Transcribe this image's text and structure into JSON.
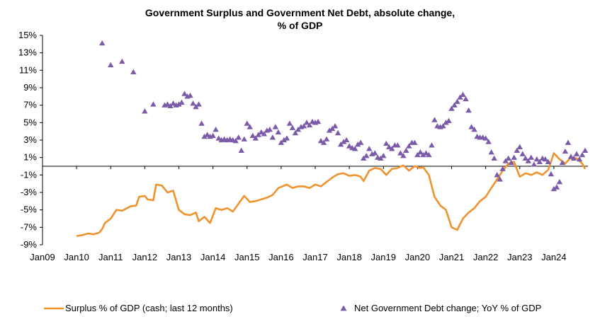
{
  "chart_data": {
    "type": "line",
    "title_line1": "Government Surplus and Government Net Debt, absolute change,",
    "title_line2": "% of GDP",
    "xlabel": "",
    "ylabel": "",
    "ylim": [
      -9,
      15
    ],
    "y_ticks": [
      "15%",
      "13%",
      "11%",
      "9%",
      "7%",
      "5%",
      "3%",
      "1%",
      "-1%",
      "-3%",
      "-5%",
      "-7%",
      "-9%"
    ],
    "x_ticks": [
      "Jan09",
      "Jan10",
      "Jan11",
      "Jan12",
      "Jan13",
      "Jan14",
      "Jan15",
      "Jan16",
      "Jan17",
      "Jan18",
      "Jan19",
      "Jan20",
      "Jan21",
      "Jan22",
      "Jan23",
      "Jan24"
    ],
    "x_range": [
      "2009-01",
      "2025-01"
    ],
    "grid": false,
    "legend_position": "bottom",
    "series": [
      {
        "name": "Surplus  % of GDP (cash; last 12 months)",
        "type": "line",
        "color": "#F0922E",
        "points": [
          [
            "2010-01",
            -8.0
          ],
          [
            "2010-03",
            -7.9
          ],
          [
            "2010-05",
            -7.7
          ],
          [
            "2010-07",
            -7.8
          ],
          [
            "2010-09",
            -7.6
          ],
          [
            "2010-10",
            -7.2
          ],
          [
            "2010-11",
            -6.5
          ],
          [
            "2011-01",
            -6.0
          ],
          [
            "2011-03",
            -5.0
          ],
          [
            "2011-05",
            -5.1
          ],
          [
            "2011-08",
            -4.6
          ],
          [
            "2011-10",
            -4.5
          ],
          [
            "2011-11",
            -3.5
          ],
          [
            "2012-01",
            -3.4
          ],
          [
            "2012-02",
            -3.8
          ],
          [
            "2012-04",
            -3.9
          ],
          [
            "2012-05",
            -2.1
          ],
          [
            "2012-07",
            -2.2
          ],
          [
            "2012-09",
            -3.0
          ],
          [
            "2012-11",
            -2.8
          ],
          [
            "2013-01",
            -5.0
          ],
          [
            "2013-03",
            -5.5
          ],
          [
            "2013-05",
            -5.6
          ],
          [
            "2013-07",
            -5.3
          ],
          [
            "2013-08",
            -6.3
          ],
          [
            "2013-10",
            -5.8
          ],
          [
            "2013-12",
            -6.5
          ],
          [
            "2014-02",
            -4.8
          ],
          [
            "2014-04",
            -5.0
          ],
          [
            "2014-06",
            -4.8
          ],
          [
            "2014-08",
            -5.2
          ],
          [
            "2014-10",
            -4.3
          ],
          [
            "2014-12",
            -3.4
          ],
          [
            "2015-02",
            -4.1
          ],
          [
            "2015-04",
            -4.0
          ],
          [
            "2015-06",
            -3.8
          ],
          [
            "2015-08",
            -3.6
          ],
          [
            "2015-10",
            -3.3
          ],
          [
            "2015-12",
            -2.5
          ],
          [
            "2016-03",
            -2.1
          ],
          [
            "2016-05",
            -2.5
          ],
          [
            "2016-07",
            -2.3
          ],
          [
            "2016-09",
            -2.3
          ],
          [
            "2016-11",
            -2.5
          ],
          [
            "2017-01",
            -2.1
          ],
          [
            "2017-03",
            -2.3
          ],
          [
            "2017-05",
            -1.8
          ],
          [
            "2017-07",
            -1.3
          ],
          [
            "2017-09",
            -0.9
          ],
          [
            "2017-11",
            -0.8
          ],
          [
            "2018-01",
            -1.1
          ],
          [
            "2018-03",
            -1.0
          ],
          [
            "2018-05",
            -1.2
          ],
          [
            "2018-06",
            -1.7
          ],
          [
            "2018-08",
            -0.5
          ],
          [
            "2018-10",
            -0.2
          ],
          [
            "2018-12",
            -0.3
          ],
          [
            "2019-02",
            -1.0
          ],
          [
            "2019-04",
            -0.3
          ],
          [
            "2019-06",
            -0.2
          ],
          [
            "2019-08",
            0.1
          ],
          [
            "2019-10",
            -0.5
          ],
          [
            "2019-12",
            0.0
          ],
          [
            "2020-02",
            -0.2
          ],
          [
            "2020-03",
            -0.1
          ],
          [
            "2020-05",
            -1.0
          ],
          [
            "2020-07",
            -3.5
          ],
          [
            "2020-09",
            -4.5
          ],
          [
            "2020-11",
            -5.0
          ],
          [
            "2021-01",
            -7.0
          ],
          [
            "2021-03",
            -7.3
          ],
          [
            "2021-05",
            -6.0
          ],
          [
            "2021-07",
            -5.3
          ],
          [
            "2021-09",
            -4.8
          ],
          [
            "2021-11",
            -4.0
          ],
          [
            "2022-01",
            -3.5
          ],
          [
            "2022-03",
            -2.5
          ],
          [
            "2022-05",
            -1.5
          ],
          [
            "2022-07",
            -0.5
          ],
          [
            "2022-09",
            0.3
          ],
          [
            "2022-11",
            0.5
          ],
          [
            "2023-01",
            -1.2
          ],
          [
            "2023-03",
            -0.8
          ],
          [
            "2023-05",
            -1.0
          ],
          [
            "2023-07",
            -0.7
          ],
          [
            "2023-09",
            -1.0
          ],
          [
            "2023-11",
            -0.4
          ],
          [
            "2024-01",
            1.5
          ],
          [
            "2024-03",
            0.8
          ],
          [
            "2024-05",
            0.3
          ],
          [
            "2024-07",
            1.0
          ],
          [
            "2024-09",
            0.9
          ],
          [
            "2024-11",
            0.3
          ],
          [
            "2024-12",
            -0.3
          ]
        ]
      },
      {
        "name": "Net Government Debt change; YoY % of GDP",
        "type": "scatter",
        "marker": "triangle",
        "color": "#7B5BA8",
        "points": [
          [
            "2010-10",
            14.1
          ],
          [
            "2011-01",
            11.6
          ],
          [
            "2011-05",
            12.0
          ],
          [
            "2011-09",
            10.8
          ],
          [
            "2012-01",
            6.3
          ],
          [
            "2012-04",
            7.1
          ],
          [
            "2012-08",
            7.0
          ],
          [
            "2012-09",
            7.1
          ],
          [
            "2012-10",
            6.9
          ],
          [
            "2012-11",
            7.2
          ],
          [
            "2012-12",
            7.0
          ],
          [
            "2013-01",
            7.1
          ],
          [
            "2013-02",
            7.3
          ],
          [
            "2013-03",
            8.3
          ],
          [
            "2013-04",
            8.0
          ],
          [
            "2013-05",
            8.1
          ],
          [
            "2013-06",
            7.2
          ],
          [
            "2013-07",
            6.8
          ],
          [
            "2013-08",
            7.1
          ],
          [
            "2013-09",
            4.9
          ],
          [
            "2013-10",
            3.4
          ],
          [
            "2013-11",
            3.6
          ],
          [
            "2013-12",
            3.4
          ],
          [
            "2014-01",
            3.5
          ],
          [
            "2014-02",
            4.2
          ],
          [
            "2014-03",
            3.2
          ],
          [
            "2014-04",
            3.0
          ],
          [
            "2014-05",
            3.1
          ],
          [
            "2014-06",
            3.0
          ],
          [
            "2014-07",
            3.1
          ],
          [
            "2014-08",
            3.0
          ],
          [
            "2014-09",
            2.9
          ],
          [
            "2014-10",
            3.3
          ],
          [
            "2014-11",
            1.8
          ],
          [
            "2014-12",
            3.1
          ],
          [
            "2015-01",
            4.9
          ],
          [
            "2015-02",
            4.5
          ],
          [
            "2015-03",
            3.5
          ],
          [
            "2015-04",
            3.2
          ],
          [
            "2015-05",
            3.6
          ],
          [
            "2015-06",
            3.9
          ],
          [
            "2015-07",
            3.7
          ],
          [
            "2015-08",
            4.1
          ],
          [
            "2015-09",
            4.2
          ],
          [
            "2015-10",
            3.3
          ],
          [
            "2015-11",
            4.5
          ],
          [
            "2015-12",
            3.9
          ],
          [
            "2016-01",
            2.7
          ],
          [
            "2016-02",
            3.0
          ],
          [
            "2016-03",
            3.2
          ],
          [
            "2016-04",
            4.9
          ],
          [
            "2016-05",
            4.4
          ],
          [
            "2016-06",
            3.8
          ],
          [
            "2016-07",
            4.2
          ],
          [
            "2016-08",
            4.5
          ],
          [
            "2016-09",
            4.6
          ],
          [
            "2016-10",
            5.0
          ],
          [
            "2016-11",
            4.7
          ],
          [
            "2016-12",
            5.1
          ],
          [
            "2017-01",
            5.0
          ],
          [
            "2017-02",
            5.1
          ],
          [
            "2017-03",
            2.9
          ],
          [
            "2017-04",
            2.7
          ],
          [
            "2017-05",
            3.1
          ],
          [
            "2017-06",
            4.1
          ],
          [
            "2017-07",
            4.3
          ],
          [
            "2017-08",
            4.6
          ],
          [
            "2017-09",
            3.8
          ],
          [
            "2017-10",
            2.5
          ],
          [
            "2017-11",
            2.8
          ],
          [
            "2017-12",
            3.0
          ],
          [
            "2018-01",
            2.3
          ],
          [
            "2018-02",
            2.1
          ],
          [
            "2018-03",
            2.0
          ],
          [
            "2018-04",
            2.5
          ],
          [
            "2018-05",
            2.7
          ],
          [
            "2018-06",
            0.9
          ],
          [
            "2018-07",
            1.2
          ],
          [
            "2018-08",
            2.0
          ],
          [
            "2018-09",
            1.4
          ],
          [
            "2018-10",
            1.5
          ],
          [
            "2018-11",
            1.0
          ],
          [
            "2018-12",
            0.9
          ],
          [
            "2019-01",
            1.2
          ],
          [
            "2019-02",
            2.6
          ],
          [
            "2019-03",
            2.2
          ],
          [
            "2019-04",
            2.0
          ],
          [
            "2019-05",
            2.4
          ],
          [
            "2019-06",
            2.4
          ],
          [
            "2019-07",
            1.5
          ],
          [
            "2019-08",
            1.2
          ],
          [
            "2019-09",
            1.8
          ],
          [
            "2019-10",
            2.3
          ],
          [
            "2019-11",
            2.7
          ],
          [
            "2019-12",
            2.7
          ],
          [
            "2020-01",
            1.3
          ],
          [
            "2020-02",
            1.6
          ],
          [
            "2020-03",
            1.3
          ],
          [
            "2020-04",
            1.5
          ],
          [
            "2020-05",
            1.3
          ],
          [
            "2020-06",
            2.4
          ],
          [
            "2020-07",
            5.3
          ],
          [
            "2020-08",
            4.6
          ],
          [
            "2020-09",
            4.5
          ],
          [
            "2020-10",
            4.6
          ],
          [
            "2020-11",
            5.0
          ],
          [
            "2020-12",
            5.2
          ],
          [
            "2021-01",
            6.6
          ],
          [
            "2021-02",
            7.0
          ],
          [
            "2021-03",
            7.4
          ],
          [
            "2021-04",
            7.9
          ],
          [
            "2021-05",
            8.2
          ],
          [
            "2021-06",
            7.7
          ],
          [
            "2021-07",
            6.4
          ],
          [
            "2021-08",
            4.5
          ],
          [
            "2021-09",
            4.2
          ],
          [
            "2021-10",
            3.4
          ],
          [
            "2021-11",
            3.3
          ],
          [
            "2021-12",
            3.3
          ],
          [
            "2022-01",
            3.2
          ],
          [
            "2022-02",
            2.8
          ],
          [
            "2022-03",
            1.6
          ],
          [
            "2022-04",
            0.9
          ],
          [
            "2022-05",
            -1.0
          ],
          [
            "2022-06",
            -1.5
          ],
          [
            "2022-07",
            -0.3
          ],
          [
            "2022-08",
            0.6
          ],
          [
            "2022-09",
            0.9
          ],
          [
            "2022-10",
            0.4
          ],
          [
            "2022-11",
            1.0
          ],
          [
            "2022-12",
            1.8
          ],
          [
            "2023-01",
            2.2
          ],
          [
            "2023-02",
            1.4
          ],
          [
            "2023-03",
            0.9
          ],
          [
            "2023-04",
            0.6
          ],
          [
            "2023-05",
            1.0
          ],
          [
            "2023-06",
            0.2
          ],
          [
            "2023-07",
            0.8
          ],
          [
            "2023-08",
            0.5
          ],
          [
            "2023-09",
            0.9
          ],
          [
            "2023-10",
            0.8
          ],
          [
            "2023-11",
            0.5
          ],
          [
            "2023-12",
            -0.9
          ],
          [
            "2024-01",
            -2.6
          ],
          [
            "2024-02",
            -2.4
          ],
          [
            "2024-03",
            -1.8
          ],
          [
            "2024-04",
            0.4
          ],
          [
            "2024-05",
            1.7
          ],
          [
            "2024-06",
            2.7
          ],
          [
            "2024-07",
            1.1
          ],
          [
            "2024-08",
            0.9
          ],
          [
            "2024-09",
            1.4
          ],
          [
            "2024-10",
            0.8
          ],
          [
            "2024-11",
            1.3
          ],
          [
            "2024-12",
            1.8
          ]
        ]
      }
    ]
  }
}
